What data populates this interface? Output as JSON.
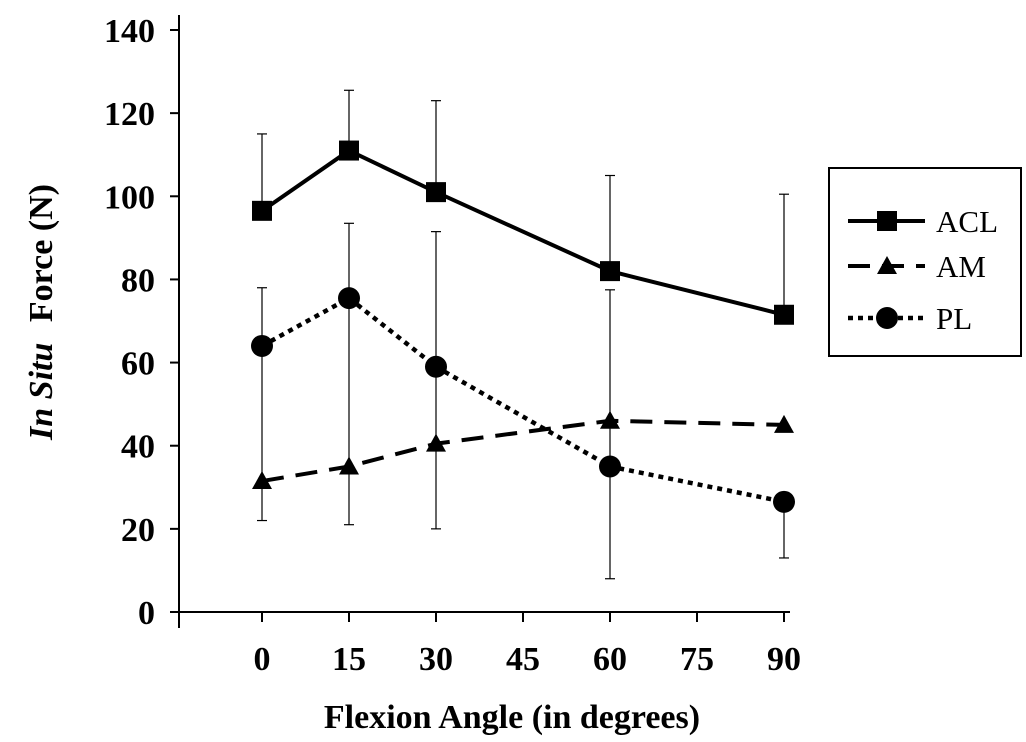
{
  "chart_data": {
    "type": "line",
    "x": [
      0,
      15,
      30,
      60,
      90
    ],
    "xlabel": "Flexion Angle (in degrees)",
    "ylabel_italic": "In Situ",
    "ylabel_rest": "Force (N)",
    "xlim": [
      -15,
      95
    ],
    "ylim": [
      0,
      140
    ],
    "xticks": [
      0,
      15,
      30,
      45,
      60,
      75,
      90
    ],
    "yticks": [
      0,
      20,
      40,
      60,
      80,
      100,
      120,
      140
    ],
    "grid": false,
    "legend_position": "right",
    "series": [
      {
        "name": "ACL",
        "line_style": "solid",
        "marker": "square",
        "color": "#000000",
        "values": [
          96.5,
          111,
          101,
          82,
          71.5
        ],
        "error_upper": [
          115,
          125.5,
          123,
          105,
          100.5
        ],
        "error_lower": [
          null,
          null,
          null,
          null,
          null
        ]
      },
      {
        "name": "AM",
        "line_style": "dashed",
        "marker": "triangle",
        "color": "#000000",
        "values": [
          31.5,
          35,
          40.5,
          46,
          45
        ],
        "error_upper": [
          null,
          null,
          null,
          null,
          null
        ],
        "error_lower": [
          null,
          null,
          null,
          null,
          null
        ]
      },
      {
        "name": "PL",
        "line_style": "dotted",
        "marker": "circle",
        "color": "#000000",
        "values": [
          64,
          75.5,
          59,
          35,
          26.5
        ],
        "error_upper": [
          78,
          93.5,
          91.5,
          77.5,
          null
        ],
        "error_lower": [
          22,
          21,
          20,
          8,
          13
        ]
      }
    ]
  }
}
